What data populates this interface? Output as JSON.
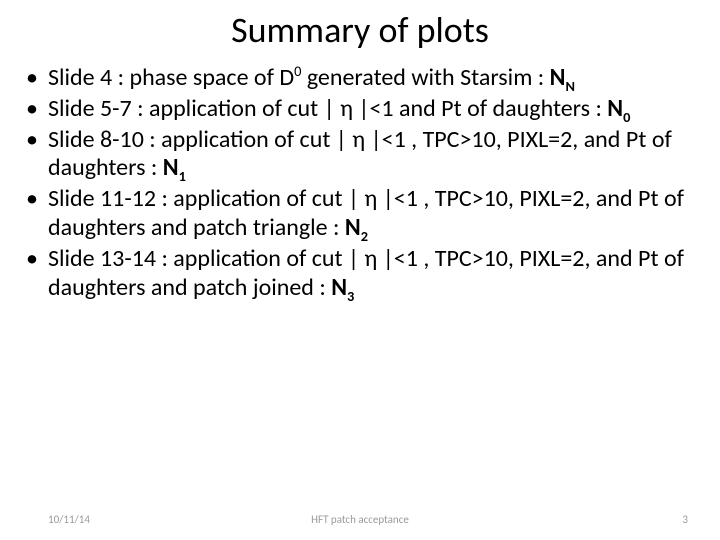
{
  "title": "Summary of plots",
  "bullets": [
    {
      "pre": "Slide 4 : phase space of D",
      "sup0": "0",
      "mid": " generated with Starsim : ",
      "bold": "N",
      "sub": "N",
      "post": ""
    },
    {
      "pre": "Slide 5-7 : application of cut | η |<1 and Pt of daughters : ",
      "bold": "N",
      "sub": "0",
      "post": ""
    },
    {
      "pre": "Slide 8-10 : application of cut | η |<1 , TPC>10, PIXL=2, and Pt of daughters : ",
      "bold": "N",
      "sub": "1",
      "post": ""
    },
    {
      "pre": "Slide 11-12 : application of cut | η |<1 , TPC>10, PIXL=2, and Pt of daughters and patch triangle : ",
      "bold": "N",
      "sub": "2",
      "post": ""
    },
    {
      "pre": "Slide 13-14 : application of cut | η |<1 , TPC>10, PIXL=2, and Pt of daughters and patch joined : ",
      "bold": "N",
      "sub": "3",
      "post": ""
    }
  ],
  "footer": {
    "date": "10/11/14",
    "center": "HFT patch acceptance",
    "page": "3"
  }
}
